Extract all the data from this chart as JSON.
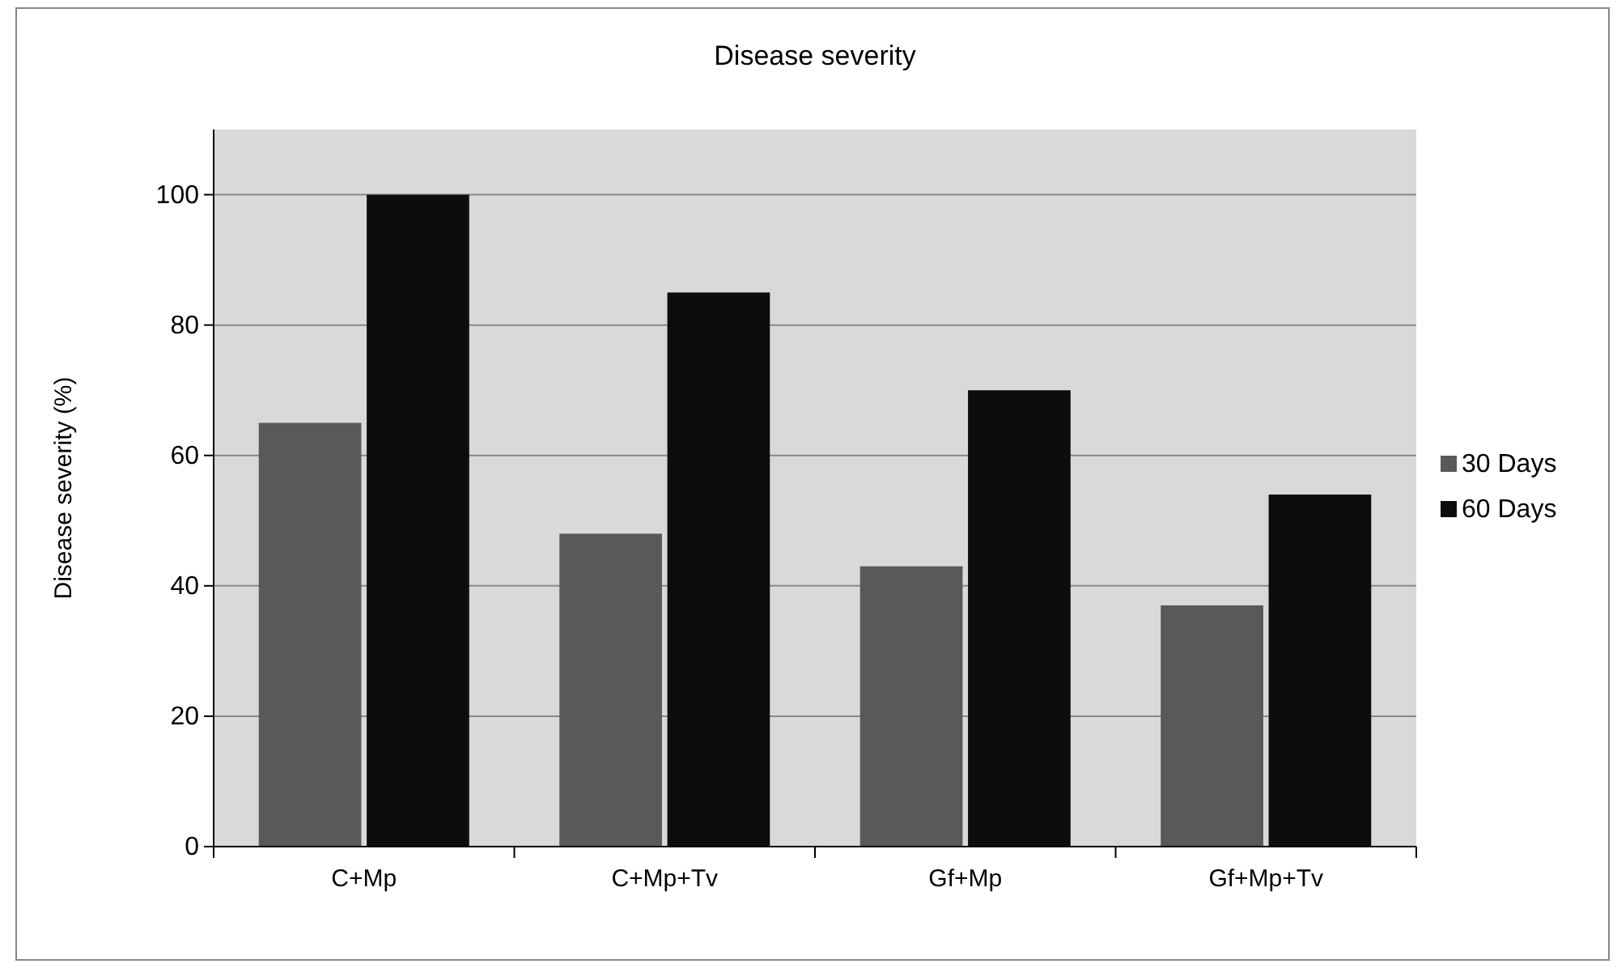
{
  "chart_data": {
    "type": "bar",
    "title": "Disease severity",
    "ylabel": "Disease severity (%)",
    "categories": [
      "C+Mp",
      "C+Mp+Tv",
      "Gf+Mp",
      "Gf+Mp+Tv"
    ],
    "series": [
      {
        "name": "30 Days",
        "color": "#595959",
        "values": [
          65,
          48,
          43,
          37
        ]
      },
      {
        "name": "60 Days",
        "color": "#0d0d0d",
        "values": [
          100,
          85,
          70,
          54
        ]
      }
    ],
    "ylim": [
      0,
      110
    ],
    "yticks": [
      0,
      20,
      40,
      60,
      80,
      100
    ],
    "grid": "y",
    "legend": "right"
  }
}
